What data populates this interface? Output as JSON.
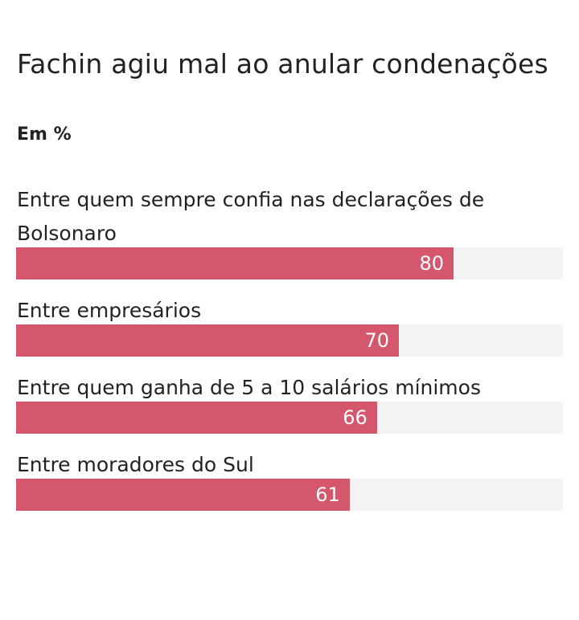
{
  "chart_data": {
    "type": "bar",
    "orientation": "horizontal",
    "title": "Fachin agiu mal ao anular condenações",
    "subtitle": "Em %",
    "categories": [
      "Entre quem sempre confia nas declarações de Bolsonaro",
      "Entre empresários",
      "Entre quem ganha de 5 a 10 salários mínimos",
      "Entre moradores do Sul"
    ],
    "values": [
      80,
      70,
      66,
      61
    ],
    "value_labels": [
      "80",
      "70",
      "66",
      "61"
    ],
    "xlim": [
      0,
      100
    ],
    "bar_color": "#d4576b",
    "track_color": "#f4f4f4",
    "grid": false,
    "legend": "none"
  }
}
